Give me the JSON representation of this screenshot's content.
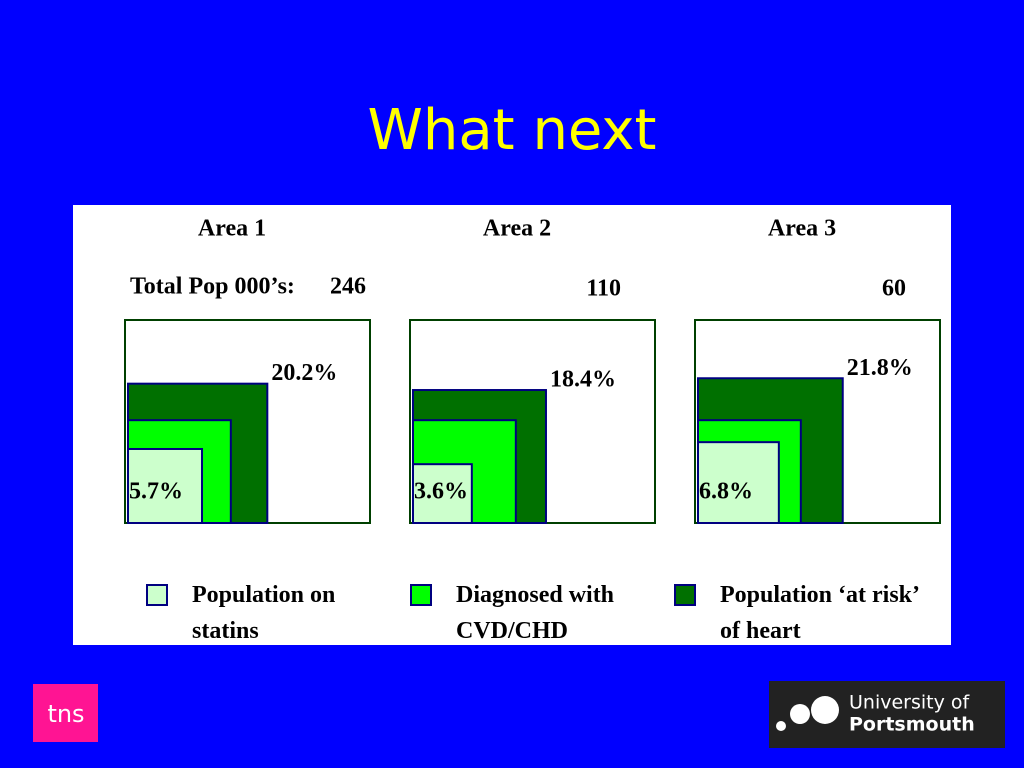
{
  "chart_data": {
    "type": "nested-square",
    "title": "What next",
    "categories": [
      "Area 1",
      "Area 2",
      "Area 3"
    ],
    "total_prefix": "Total Pop 000’s:",
    "totals": [
      246,
      110,
      60
    ],
    "series": [
      {
        "name": "Population on statins",
        "color": "#ccffcc",
        "values": [
          5.7,
          3.6,
          6.8
        ],
        "value_labels": [
          "5.7%",
          "3.6%",
          "6.8%"
        ]
      },
      {
        "name": "Diagnosed with CVD/CHD",
        "color": "#00ff00",
        "values": [
          11,
          11,
          11
        ]
      },
      {
        "name": "Population ‘at risk’ of heart",
        "color": "#007000",
        "values": [
          20.2,
          18.4,
          21.8
        ],
        "value_labels": [
          "20.2%",
          "18.4%",
          "21.8%"
        ]
      }
    ]
  },
  "logos": {
    "left": "tns",
    "right_line1": "University of",
    "right_line2": "Portsmouth"
  }
}
